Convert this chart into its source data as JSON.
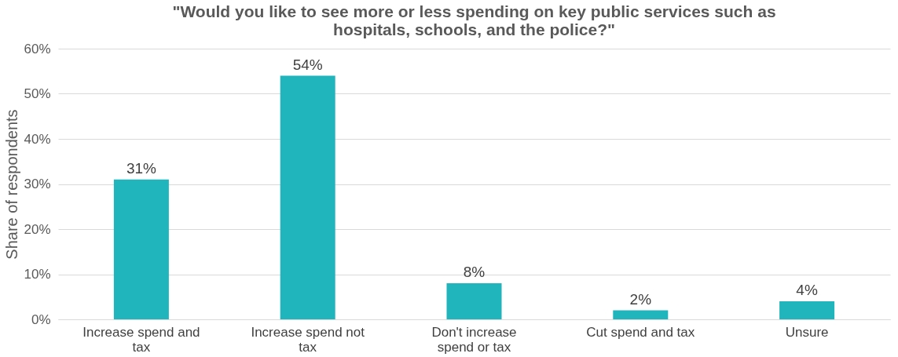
{
  "chart_data": {
    "type": "bar",
    "title": "\"Would you like to see more or less spending on key public services such as hospitals, schools, and the police?\"",
    "ylabel": "Share of respondents",
    "categories": [
      "Increase spend and tax",
      "Increase spend not tax",
      "Don't increase spend or tax",
      "Cut spend and tax",
      "Unsure"
    ],
    "values": [
      31,
      54,
      8,
      2,
      4
    ],
    "value_labels": [
      "31%",
      "54%",
      "8%",
      "2%",
      "4%"
    ],
    "color": "#20b5bd",
    "ylim": [
      0,
      60
    ],
    "yticks": [
      {
        "value": 0,
        "label": "0%"
      },
      {
        "value": 10,
        "label": "10%"
      },
      {
        "value": 20,
        "label": "20%"
      },
      {
        "value": 30,
        "label": "30%"
      },
      {
        "value": 40,
        "label": "40%"
      },
      {
        "value": 50,
        "label": "50%"
      },
      {
        "value": 60,
        "label": "60%"
      }
    ],
    "grid": "y"
  }
}
